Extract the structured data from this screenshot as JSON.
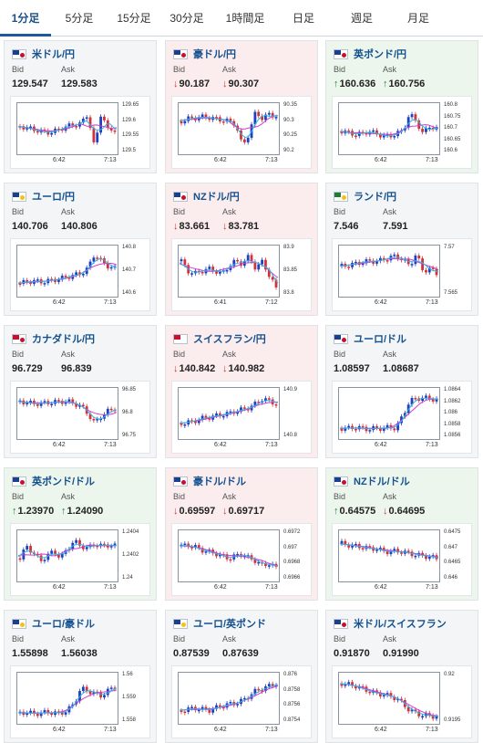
{
  "tabs": [
    {
      "label": "1分足",
      "active": true
    },
    {
      "label": "5分足",
      "active": false
    },
    {
      "label": "15分足",
      "active": false
    },
    {
      "label": "30分足",
      "active": false
    },
    {
      "label": "1時間足",
      "active": false
    },
    {
      "label": "日足",
      "active": false
    },
    {
      "label": "週足",
      "active": false
    },
    {
      "label": "月足",
      "active": false
    }
  ],
  "labels": {
    "bid": "Bid",
    "ask": "Ask"
  },
  "colors": {
    "accent": "#1c5a9c",
    "down_bg": "#fbecee",
    "up_bg": "#ecf6ec",
    "neutral_bg": "#f3f5f7",
    "candle_up": "#1f3fbf",
    "candle_down": "#d0343b",
    "ma_magenta": "#d43ad1",
    "ma_cyan": "#2fb6e0"
  },
  "cards": [
    {
      "title": "米ドル/円",
      "flag": [
        "#1b3f8f",
        "#c8102e"
      ],
      "state": "neutral",
      "bid": "129.547",
      "ask": "129.583",
      "bid_dir": "",
      "ask_dir": "",
      "yticks": [
        "129.65",
        "129.6",
        "129.55",
        "129.5"
      ],
      "xticks": [
        "6:42",
        "7:13"
      ],
      "trend": [
        0.45,
        0.48,
        0.52,
        0.55,
        0.58,
        0.56,
        0.5,
        0.45,
        0.42,
        0.4,
        0.2,
        0.9,
        0.15,
        0.55,
        0.5
      ]
    },
    {
      "title": "豪ドル/円",
      "flag": [
        "#1b3f8f",
        "#c8102e"
      ],
      "state": "down",
      "bid": "90.187",
      "ask": "90.307",
      "bid_dir": "down",
      "ask_dir": "down",
      "yticks": [
        "90.35",
        "90.3",
        "90.25",
        "90.2"
      ],
      "xticks": [
        "6:42",
        "7:13"
      ],
      "trend": [
        0.35,
        0.3,
        0.28,
        0.26,
        0.27,
        0.3,
        0.32,
        0.35,
        0.4,
        0.85,
        0.6,
        0.15,
        0.3,
        0.2,
        0.25
      ]
    },
    {
      "title": "英ポンド/円",
      "flag": [
        "#1b3f8f",
        "#c8102e"
      ],
      "state": "up",
      "bid": "160.636",
      "ask": "160.756",
      "bid_dir": "up",
      "ask_dir": "up",
      "yticks": [
        "160.8",
        "160.75",
        "160.7",
        "160.65",
        "160.6"
      ],
      "xticks": [
        "6:42",
        "7:13"
      ],
      "trend": [
        0.55,
        0.58,
        0.62,
        0.6,
        0.55,
        0.6,
        0.64,
        0.66,
        0.6,
        0.55,
        0.2,
        0.35,
        0.6,
        0.45,
        0.5
      ]
    },
    {
      "title": "ユーロ/円",
      "flag": [
        "#1b3f8f",
        "#f1c40f"
      ],
      "state": "neutral",
      "bid": "140.706",
      "ask": "140.806",
      "bid_dir": "",
      "ask_dir": "",
      "yticks": [
        "140.8",
        "140.7",
        "140.6"
      ],
      "xticks": [
        "6:42",
        "7:13"
      ],
      "trend": [
        0.75,
        0.72,
        0.7,
        0.72,
        0.7,
        0.68,
        0.65,
        0.62,
        0.58,
        0.55,
        0.45,
        0.15,
        0.3,
        0.4,
        0.45
      ]
    },
    {
      "title": "NZドル/円",
      "flag": [
        "#1b3f8f",
        "#c8102e"
      ],
      "state": "down",
      "bid": "83.661",
      "ask": "83.781",
      "bid_dir": "down",
      "ask_dir": "down",
      "yticks": [
        "83.9",
        "83.85",
        "83.8"
      ],
      "xticks": [
        "6:41",
        "7:12"
      ],
      "trend": [
        0.3,
        0.5,
        0.55,
        0.5,
        0.45,
        0.5,
        0.55,
        0.4,
        0.3,
        0.35,
        0.2,
        0.45,
        0.3,
        0.6,
        0.85
      ]
    },
    {
      "title": "ランド/円",
      "flag": [
        "#1e7b3a",
        "#f1c40f"
      ],
      "state": "neutral",
      "bid": "7.546",
      "ask": "7.591",
      "bid_dir": "",
      "ask_dir": "",
      "yticks": [
        "7.57",
        "7.565"
      ],
      "xticks": [
        "6:42",
        "7:13"
      ],
      "trend": [
        0.4,
        0.38,
        0.35,
        0.32,
        0.3,
        0.3,
        0.28,
        0.22,
        0.2,
        0.25,
        0.4,
        0.15,
        0.5,
        0.45,
        0.55
      ]
    },
    {
      "title": "カナダドル/円",
      "flag": [
        "#c8102e",
        "#c8102e"
      ],
      "state": "neutral",
      "bid": "96.729",
      "ask": "96.839",
      "bid_dir": "",
      "ask_dir": "",
      "yticks": [
        "96.85",
        "96.8",
        "96.75"
      ],
      "xticks": [
        "6:42",
        "7:13"
      ],
      "trend": [
        0.25,
        0.28,
        0.3,
        0.3,
        0.28,
        0.27,
        0.26,
        0.25,
        0.3,
        0.35,
        0.5,
        0.7,
        0.55,
        0.45,
        0.4
      ]
    },
    {
      "title": "スイスフラン/円",
      "flag": [
        "#c8102e",
        "#ffffff"
      ],
      "state": "down",
      "bid": "140.842",
      "ask": "140.982",
      "bid_dir": "down",
      "ask_dir": "down",
      "yticks": [
        "140.9",
        "140.8"
      ],
      "xticks": [
        "6:42",
        "7:13"
      ],
      "trend": [
        0.7,
        0.68,
        0.65,
        0.6,
        0.58,
        0.55,
        0.52,
        0.5,
        0.45,
        0.42,
        0.38,
        0.3,
        0.2,
        0.25,
        0.3
      ]
    },
    {
      "title": "ユーロ/ドル",
      "flag": [
        "#1b3f8f",
        "#c8102e"
      ],
      "state": "neutral",
      "bid": "1.08597",
      "ask": "1.08687",
      "bid_dir": "",
      "ask_dir": "",
      "yticks": [
        "1.0864",
        "1.0862",
        "1.086",
        "1.0858",
        "1.0856"
      ],
      "xticks": [
        "6:42",
        "7:13"
      ],
      "trend": [
        0.8,
        0.8,
        0.78,
        0.8,
        0.82,
        0.8,
        0.8,
        0.78,
        0.8,
        0.55,
        0.25,
        0.2,
        0.18,
        0.2,
        0.22
      ]
    },
    {
      "title": "英ポンド/ドル",
      "flag": [
        "#1b3f8f",
        "#c8102e"
      ],
      "state": "up",
      "bid": "1.23970",
      "ask": "1.24090",
      "bid_dir": "up",
      "ask_dir": "up",
      "yticks": [
        "1.2404",
        "1.2402",
        "1.24"
      ],
      "xticks": [
        "6:42",
        "7:13"
      ],
      "trend": [
        0.55,
        0.3,
        0.45,
        0.6,
        0.5,
        0.4,
        0.55,
        0.35,
        0.2,
        0.3,
        0.35,
        0.25,
        0.3,
        0.28,
        0.3
      ]
    },
    {
      "title": "豪ドル/ドル",
      "flag": [
        "#1b3f8f",
        "#c8102e"
      ],
      "state": "down",
      "bid": "0.69597",
      "ask": "0.69717",
      "bid_dir": "down",
      "ask_dir": "down",
      "yticks": [
        "0.6972",
        "0.697",
        "0.6968",
        "0.6966"
      ],
      "xticks": [
        "6:42",
        "7:13"
      ],
      "trend": [
        0.3,
        0.28,
        0.32,
        0.38,
        0.42,
        0.45,
        0.5,
        0.55,
        0.5,
        0.45,
        0.55,
        0.6,
        0.7,
        0.65,
        0.75
      ]
    },
    {
      "title": "NZドル/ドル",
      "flag": [
        "#1b3f8f",
        "#c8102e"
      ],
      "state": "up",
      "bid": "0.64575",
      "ask": "0.64695",
      "bid_dir": "up",
      "ask_dir": "down",
      "yticks": [
        "0.6475",
        "0.647",
        "0.6465",
        "0.646"
      ],
      "xticks": [
        "6:42",
        "7:13"
      ],
      "trend": [
        0.25,
        0.28,
        0.3,
        0.32,
        0.35,
        0.35,
        0.4,
        0.42,
        0.4,
        0.42,
        0.45,
        0.48,
        0.5,
        0.52,
        0.55
      ]
    },
    {
      "title": "ユーロ/豪ドル",
      "flag": [
        "#1b3f8f",
        "#f1c40f"
      ],
      "state": "neutral",
      "bid": "1.55898",
      "ask": "1.56038",
      "bid_dir": "",
      "ask_dir": "",
      "yticks": [
        "1.56",
        "1.559",
        "1.558"
      ],
      "xticks": [
        "6:42",
        "7:13"
      ],
      "trend": [
        0.8,
        0.78,
        0.82,
        0.8,
        0.78,
        0.8,
        0.8,
        0.75,
        0.6,
        0.3,
        0.35,
        0.4,
        0.45,
        0.35,
        0.25
      ]
    },
    {
      "title": "ユーロ/英ポンド",
      "flag": [
        "#1b3f8f",
        "#f1c40f"
      ],
      "state": "neutral",
      "bid": "0.87539",
      "ask": "0.87639",
      "bid_dir": "",
      "ask_dir": "",
      "yticks": [
        "0.876",
        "0.8758",
        "0.8756",
        "0.8754"
      ],
      "xticks": [
        "6:42",
        "7:13"
      ],
      "trend": [
        0.75,
        0.72,
        0.7,
        0.72,
        0.75,
        0.7,
        0.65,
        0.62,
        0.6,
        0.55,
        0.45,
        0.35,
        0.3,
        0.25,
        0.2
      ]
    },
    {
      "title": "米ドル/スイスフラン",
      "flag": [
        "#1b3f8f",
        "#c8102e"
      ],
      "state": "neutral",
      "bid": "0.91870",
      "ask": "0.91990",
      "bid_dir": "",
      "ask_dir": "",
      "yticks": [
        "0.92",
        "0.9195"
      ],
      "xticks": [
        "6:42",
        "7:13"
      ],
      "trend": [
        0.2,
        0.22,
        0.25,
        0.3,
        0.35,
        0.4,
        0.42,
        0.45,
        0.5,
        0.6,
        0.75,
        0.8,
        0.85,
        0.85,
        0.88
      ]
    }
  ]
}
